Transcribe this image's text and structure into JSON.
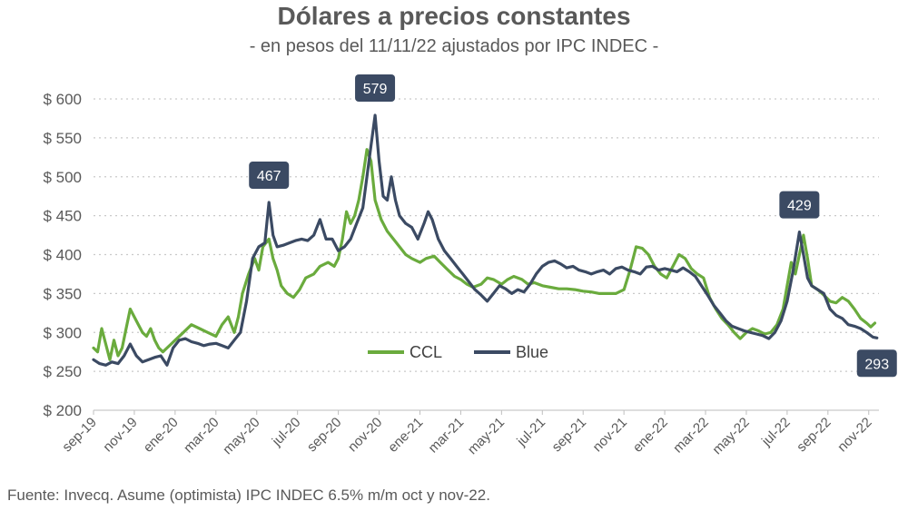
{
  "chart_data": {
    "type": "line",
    "title": "Dólares a precios constantes",
    "subtitle": "- en pesos del 11/11/22 ajustados por IPC INDEC -",
    "source": "Fuente: Invecq. Asume (optimista) IPC INDEC 6.5% m/m oct y nov-22.",
    "ylim": [
      200,
      600
    ],
    "yticks": [
      600,
      550,
      500,
      450,
      400,
      350,
      300,
      250,
      200
    ],
    "ytick_prefix": "$ ",
    "xlim": [
      0,
      38.5
    ],
    "xticks": [
      {
        "label": "sep-19",
        "pos": 0
      },
      {
        "label": "nov-19",
        "pos": 2
      },
      {
        "label": "ene-20",
        "pos": 4
      },
      {
        "label": "mar-20",
        "pos": 6
      },
      {
        "label": "may-20",
        "pos": 8
      },
      {
        "label": "jul-20",
        "pos": 10
      },
      {
        "label": "sep-20",
        "pos": 12
      },
      {
        "label": "nov-20",
        "pos": 14
      },
      {
        "label": "ene-21",
        "pos": 16
      },
      {
        "label": "mar-21",
        "pos": 18
      },
      {
        "label": "may-21",
        "pos": 20
      },
      {
        "label": "jul-21",
        "pos": 22
      },
      {
        "label": "sep-21",
        "pos": 24
      },
      {
        "label": "nov-21",
        "pos": 26
      },
      {
        "label": "ene-22",
        "pos": 28
      },
      {
        "label": "mar-22",
        "pos": 30
      },
      {
        "label": "may-22",
        "pos": 32
      },
      {
        "label": "jul-22",
        "pos": 34
      },
      {
        "label": "sep-22",
        "pos": 36
      },
      {
        "label": "nov-22",
        "pos": 38
      }
    ],
    "series": [
      {
        "name": "CCL",
        "color": "#6AAB3D",
        "points": [
          [
            0,
            280
          ],
          [
            0.2,
            275
          ],
          [
            0.4,
            305
          ],
          [
            0.6,
            285
          ],
          [
            0.8,
            265
          ],
          [
            1.0,
            290
          ],
          [
            1.2,
            270
          ],
          [
            1.4,
            280
          ],
          [
            1.6,
            305
          ],
          [
            1.8,
            330
          ],
          [
            2.0,
            320
          ],
          [
            2.2,
            310
          ],
          [
            2.4,
            300
          ],
          [
            2.6,
            295
          ],
          [
            2.8,
            305
          ],
          [
            3.0,
            290
          ],
          [
            3.2,
            280
          ],
          [
            3.4,
            275
          ],
          [
            3.6,
            280
          ],
          [
            3.8,
            285
          ],
          [
            4.0,
            290
          ],
          [
            4.4,
            300
          ],
          [
            4.8,
            310
          ],
          [
            5.2,
            305
          ],
          [
            5.6,
            300
          ],
          [
            6.0,
            295
          ],
          [
            6.3,
            310
          ],
          [
            6.6,
            320
          ],
          [
            6.9,
            300
          ],
          [
            7.1,
            320
          ],
          [
            7.3,
            350
          ],
          [
            7.6,
            375
          ],
          [
            7.9,
            395
          ],
          [
            8.1,
            380
          ],
          [
            8.3,
            410
          ],
          [
            8.6,
            420
          ],
          [
            8.8,
            395
          ],
          [
            9.0,
            380
          ],
          [
            9.2,
            360
          ],
          [
            9.5,
            350
          ],
          [
            9.8,
            345
          ],
          [
            10.1,
            355
          ],
          [
            10.4,
            370
          ],
          [
            10.8,
            375
          ],
          [
            11.1,
            385
          ],
          [
            11.5,
            390
          ],
          [
            11.8,
            385
          ],
          [
            12.0,
            395
          ],
          [
            12.2,
            420
          ],
          [
            12.4,
            455
          ],
          [
            12.6,
            440
          ],
          [
            12.8,
            450
          ],
          [
            13.0,
            470
          ],
          [
            13.2,
            500
          ],
          [
            13.4,
            535
          ],
          [
            13.6,
            520
          ],
          [
            13.8,
            470
          ],
          [
            14.1,
            445
          ],
          [
            14.4,
            430
          ],
          [
            14.7,
            420
          ],
          [
            15.0,
            410
          ],
          [
            15.3,
            400
          ],
          [
            15.6,
            395
          ],
          [
            16.0,
            390
          ],
          [
            16.3,
            395
          ],
          [
            16.7,
            398
          ],
          [
            17.0,
            390
          ],
          [
            17.3,
            382
          ],
          [
            17.7,
            372
          ],
          [
            18.0,
            368
          ],
          [
            18.3,
            362
          ],
          [
            18.6,
            358
          ],
          [
            19.0,
            362
          ],
          [
            19.3,
            370
          ],
          [
            19.6,
            368
          ],
          [
            20.0,
            362
          ],
          [
            20.3,
            368
          ],
          [
            20.6,
            372
          ],
          [
            21.0,
            368
          ],
          [
            21.3,
            362
          ],
          [
            21.6,
            364
          ],
          [
            22.0,
            360
          ],
          [
            22.4,
            358
          ],
          [
            22.8,
            356
          ],
          [
            23.2,
            356
          ],
          [
            23.6,
            355
          ],
          [
            24.0,
            353
          ],
          [
            24.4,
            352
          ],
          [
            24.8,
            350
          ],
          [
            25.2,
            350
          ],
          [
            25.6,
            350
          ],
          [
            26.0,
            355
          ],
          [
            26.3,
            380
          ],
          [
            26.6,
            410
          ],
          [
            26.9,
            408
          ],
          [
            27.2,
            400
          ],
          [
            27.5,
            385
          ],
          [
            27.8,
            375
          ],
          [
            28.1,
            370
          ],
          [
            28.4,
            385
          ],
          [
            28.7,
            400
          ],
          [
            29.0,
            395
          ],
          [
            29.3,
            382
          ],
          [
            29.6,
            375
          ],
          [
            29.9,
            370
          ],
          [
            30.2,
            345
          ],
          [
            30.5,
            330
          ],
          [
            30.8,
            318
          ],
          [
            31.1,
            310
          ],
          [
            31.4,
            300
          ],
          [
            31.7,
            292
          ],
          [
            32.0,
            300
          ],
          [
            32.3,
            305
          ],
          [
            32.6,
            302
          ],
          [
            32.9,
            298
          ],
          [
            33.2,
            300
          ],
          [
            33.5,
            310
          ],
          [
            33.8,
            330
          ],
          [
            34.0,
            360
          ],
          [
            34.2,
            390
          ],
          [
            34.4,
            375
          ],
          [
            34.6,
            400
          ],
          [
            34.8,
            425
          ],
          [
            35.0,
            395
          ],
          [
            35.2,
            360
          ],
          [
            35.5,
            355
          ],
          [
            35.8,
            348
          ],
          [
            36.1,
            340
          ],
          [
            36.4,
            338
          ],
          [
            36.7,
            345
          ],
          [
            37.0,
            340
          ],
          [
            37.3,
            330
          ],
          [
            37.6,
            318
          ],
          [
            37.9,
            312
          ],
          [
            38.1,
            307
          ],
          [
            38.3,
            312
          ]
        ]
      },
      {
        "name": "Blue",
        "color": "#3B4A63",
        "points": [
          [
            0,
            265
          ],
          [
            0.3,
            260
          ],
          [
            0.6,
            258
          ],
          [
            0.9,
            262
          ],
          [
            1.2,
            260
          ],
          [
            1.5,
            270
          ],
          [
            1.8,
            285
          ],
          [
            2.1,
            270
          ],
          [
            2.4,
            262
          ],
          [
            2.7,
            265
          ],
          [
            3.0,
            268
          ],
          [
            3.3,
            270
          ],
          [
            3.6,
            258
          ],
          [
            3.9,
            280
          ],
          [
            4.2,
            290
          ],
          [
            4.5,
            292
          ],
          [
            4.8,
            288
          ],
          [
            5.1,
            286
          ],
          [
            5.4,
            283
          ],
          [
            5.7,
            285
          ],
          [
            6.0,
            286
          ],
          [
            6.3,
            283
          ],
          [
            6.6,
            280
          ],
          [
            6.9,
            290
          ],
          [
            7.2,
            300
          ],
          [
            7.5,
            340
          ],
          [
            7.8,
            395
          ],
          [
            8.1,
            410
          ],
          [
            8.4,
            415
          ],
          [
            8.6,
            467
          ],
          [
            8.8,
            425
          ],
          [
            9.0,
            410
          ],
          [
            9.3,
            412
          ],
          [
            9.6,
            415
          ],
          [
            9.9,
            418
          ],
          [
            10.2,
            420
          ],
          [
            10.5,
            418
          ],
          [
            10.8,
            425
          ],
          [
            11.1,
            445
          ],
          [
            11.4,
            420
          ],
          [
            11.7,
            420
          ],
          [
            12.0,
            405
          ],
          [
            12.3,
            410
          ],
          [
            12.6,
            420
          ],
          [
            12.9,
            440
          ],
          [
            13.2,
            460
          ],
          [
            13.4,
            500
          ],
          [
            13.6,
            540
          ],
          [
            13.8,
            579
          ],
          [
            14.0,
            520
          ],
          [
            14.2,
            475
          ],
          [
            14.4,
            470
          ],
          [
            14.6,
            500
          ],
          [
            14.8,
            470
          ],
          [
            15.0,
            450
          ],
          [
            15.3,
            440
          ],
          [
            15.6,
            435
          ],
          [
            15.9,
            420
          ],
          [
            16.2,
            440
          ],
          [
            16.4,
            455
          ],
          [
            16.6,
            445
          ],
          [
            16.9,
            420
          ],
          [
            17.2,
            405
          ],
          [
            17.5,
            395
          ],
          [
            17.8,
            385
          ],
          [
            18.1,
            375
          ],
          [
            18.4,
            365
          ],
          [
            18.7,
            355
          ],
          [
            19.0,
            348
          ],
          [
            19.3,
            340
          ],
          [
            19.6,
            350
          ],
          [
            19.9,
            360
          ],
          [
            20.2,
            356
          ],
          [
            20.5,
            350
          ],
          [
            20.8,
            355
          ],
          [
            21.1,
            352
          ],
          [
            21.4,
            362
          ],
          [
            21.7,
            375
          ],
          [
            22.0,
            385
          ],
          [
            22.3,
            390
          ],
          [
            22.6,
            392
          ],
          [
            22.9,
            388
          ],
          [
            23.2,
            383
          ],
          [
            23.5,
            385
          ],
          [
            23.8,
            380
          ],
          [
            24.1,
            378
          ],
          [
            24.4,
            375
          ],
          [
            24.7,
            378
          ],
          [
            25.0,
            380
          ],
          [
            25.3,
            375
          ],
          [
            25.6,
            382
          ],
          [
            25.9,
            384
          ],
          [
            26.2,
            380
          ],
          [
            26.5,
            378
          ],
          [
            26.8,
            375
          ],
          [
            27.1,
            384
          ],
          [
            27.4,
            385
          ],
          [
            27.7,
            380
          ],
          [
            28.0,
            382
          ],
          [
            28.3,
            380
          ],
          [
            28.6,
            378
          ],
          [
            28.9,
            383
          ],
          [
            29.2,
            378
          ],
          [
            29.5,
            372
          ],
          [
            29.8,
            360
          ],
          [
            30.1,
            348
          ],
          [
            30.4,
            335
          ],
          [
            30.7,
            325
          ],
          [
            31.0,
            315
          ],
          [
            31.3,
            308
          ],
          [
            31.6,
            305
          ],
          [
            31.9,
            302
          ],
          [
            32.2,
            300
          ],
          [
            32.5,
            298
          ],
          [
            32.8,
            296
          ],
          [
            33.1,
            292
          ],
          [
            33.4,
            300
          ],
          [
            33.7,
            315
          ],
          [
            34.0,
            340
          ],
          [
            34.3,
            380
          ],
          [
            34.6,
            429
          ],
          [
            34.8,
            400
          ],
          [
            35.0,
            370
          ],
          [
            35.2,
            360
          ],
          [
            35.5,
            355
          ],
          [
            35.8,
            350
          ],
          [
            36.1,
            330
          ],
          [
            36.4,
            322
          ],
          [
            36.7,
            318
          ],
          [
            37.0,
            310
          ],
          [
            37.3,
            308
          ],
          [
            37.6,
            305
          ],
          [
            37.9,
            300
          ],
          [
            38.2,
            294
          ],
          [
            38.4,
            293
          ]
        ]
      }
    ],
    "annotations": [
      {
        "label": "467",
        "x": 8.6,
        "y": 467,
        "place": "above"
      },
      {
        "label": "579",
        "x": 13.8,
        "y": 579,
        "place": "above"
      },
      {
        "label": "429",
        "x": 34.6,
        "y": 429,
        "place": "above"
      },
      {
        "label": "293",
        "x": 38.4,
        "y": 293,
        "place": "below"
      }
    ],
    "legend": {
      "position": "bottom-center",
      "entries": [
        "CCL",
        "Blue"
      ]
    },
    "grid": "horizontal-dotted"
  }
}
